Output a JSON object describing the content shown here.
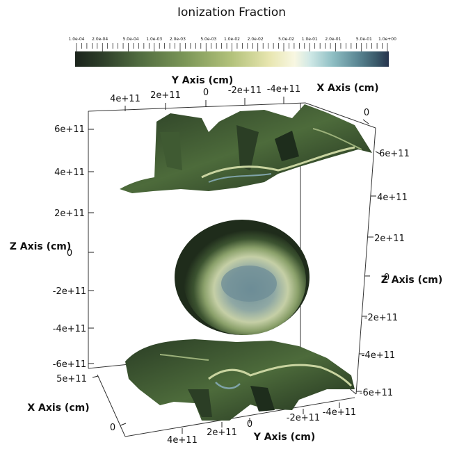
{
  "title": "Ionization Fraction",
  "colorbar": {
    "ticks": [
      "1.0e-04",
      "2.0e-04",
      "5.0e-04",
      "1.0e-03",
      "2.0e-03",
      "5.0e-03",
      "1.0e-02",
      "2.0e-02",
      "5.0e-02",
      "1.0e-01",
      "2.0e-01",
      "5.0e-01",
      "1.0e+00"
    ],
    "scale": "log",
    "colors": [
      "#1b241c",
      "#2e3f2a",
      "#4f6a3f",
      "#7b9657",
      "#b3c27b",
      "#e8e6b0",
      "#f8f7e2",
      "#cfe8e6",
      "#8fbfc4",
      "#5b8794",
      "#3a5a6a",
      "#26334d"
    ]
  },
  "axes": {
    "y_top": {
      "title": "Y Axis (cm)",
      "ticks": [
        "4e+11",
        "2e+11",
        "0",
        "-2e+11",
        "-4e+11"
      ]
    },
    "x_top": {
      "title": "X Axis (cm)",
      "ticks": [
        "0",
        "6e+11"
      ]
    },
    "z_left": {
      "title": "Z Axis (cm)",
      "ticks": [
        "6e+11",
        "4e+11",
        "2e+11",
        "0",
        "-2e+11",
        "-4e+11",
        "-6e+11"
      ]
    },
    "z_right": {
      "title": "Z Axis (cm)",
      "ticks": [
        "4e+11",
        "2e+11",
        "0",
        "-2e+11",
        "-4e+11",
        "-6e+11"
      ]
    },
    "x_bottom": {
      "title": "X Axis (cm)",
      "ticks": [
        "5e+11",
        "0"
      ]
    },
    "y_bottom": {
      "title": "Y Axis (cm)",
      "ticks": [
        "4e+11",
        "2e+11",
        "0",
        "-2e+11",
        "-4e+11"
      ]
    }
  },
  "render_colors": {
    "dark": "#1e2d1c",
    "mid": "#4d6b3b",
    "light": "#c9d4a0",
    "core": "#7fa3a8"
  }
}
